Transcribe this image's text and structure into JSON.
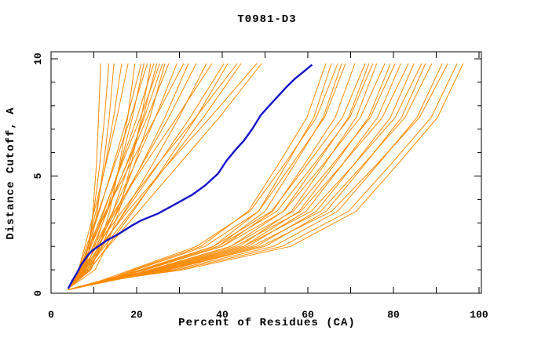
{
  "chart_data": {
    "type": "line",
    "title": "T0981-D3",
    "xlabel": "Percent of Residues (CA)",
    "ylabel": "Distance Cutoff, A",
    "xlim": [
      0,
      100
    ],
    "ylim": [
      0,
      10
    ],
    "x_tick_step_minor": 10,
    "x_major_ticks": [
      0,
      20,
      40,
      60,
      80,
      100
    ],
    "x_tick_labels": [
      "0",
      "20",
      "40",
      "60",
      "80",
      "100"
    ],
    "y_tick_step_minor": 1,
    "y_major_ticks": [
      0,
      5,
      10
    ],
    "y_tick_labels": [
      "0",
      "5",
      "10"
    ],
    "grid": false,
    "legend": "none",
    "colors": {
      "model": "#ff8a00",
      "highlight": "#1414cc",
      "axis": "#000000",
      "background": "#ffffff"
    },
    "highlight_series": {
      "name": "highlighted-model",
      "points": [
        [
          4,
          0.2
        ],
        [
          5,
          0.55
        ],
        [
          6,
          0.85
        ],
        [
          7,
          1.2
        ],
        [
          8.5,
          1.6
        ],
        [
          9.5,
          1.8
        ],
        [
          11,
          2.0
        ],
        [
          13,
          2.25
        ],
        [
          15.5,
          2.5
        ],
        [
          19,
          2.9
        ],
        [
          21,
          3.1
        ],
        [
          25,
          3.4
        ],
        [
          28,
          3.7
        ],
        [
          30,
          3.9
        ],
        [
          33,
          4.2
        ],
        [
          36,
          4.6
        ],
        [
          39,
          5.1
        ],
        [
          41,
          5.65
        ],
        [
          43,
          6.1
        ],
        [
          45,
          6.5
        ],
        [
          47,
          7.0
        ],
        [
          49,
          7.6
        ],
        [
          51,
          8.0
        ],
        [
          53,
          8.4
        ],
        [
          55,
          8.8
        ],
        [
          57,
          9.15
        ],
        [
          59,
          9.45
        ],
        [
          61,
          9.75
        ]
      ]
    },
    "series_groups": [
      {
        "name": "steep-model-fan",
        "cutoffs": [
          0.2,
          1,
          2,
          3.5,
          5.5,
          7.5,
          9.8
        ],
        "models_x": [
          [
            4,
            8.1,
            9.0,
            9.8,
            10.6,
            11.1,
            11.6
          ],
          [
            4,
            7.5,
            8.7,
            10.0,
            11.4,
            12.5,
            13.5
          ],
          [
            4,
            7.8,
            9.2,
            10.8,
            12.3,
            13.6,
            14.7
          ],
          [
            4,
            7.1,
            8.6,
            10.5,
            12.7,
            14.6,
            16.5
          ],
          [
            4,
            6.4,
            7.9,
            10.1,
            12.8,
            15.4,
            18.0
          ],
          [
            4,
            9.3,
            11.4,
            13.7,
            16.0,
            17.9,
            19.6
          ],
          [
            4,
            6.8,
            8.6,
            11.3,
            14.6,
            17.8,
            21.1
          ],
          [
            4,
            8.0,
            10.2,
            13.0,
            16.2,
            19.0,
            21.7
          ],
          [
            4,
            6.5,
            8.3,
            11.1,
            14.9,
            18.6,
            22.5
          ],
          [
            4,
            10.3,
            13.0,
            15.9,
            18.7,
            21.1,
            23.3
          ],
          [
            4,
            7.1,
            9.3,
            12.4,
            16.3,
            20.1,
            24.0
          ],
          [
            4,
            8.5,
            11.2,
            14.5,
            18.2,
            21.5,
            24.7
          ],
          [
            4,
            6.7,
            8.9,
            12.2,
            16.5,
            20.9,
            25.4
          ],
          [
            4,
            7.3,
            9.8,
            13.2,
            17.6,
            21.8,
            26.1
          ],
          [
            4,
            8.8,
            11.8,
            15.4,
            19.5,
            23.1,
            26.6
          ],
          [
            4,
            6.9,
            9.3,
            12.9,
            17.7,
            22.5,
            27.5
          ],
          [
            4,
            7.7,
            10.5,
            14.5,
            19.6,
            24.4,
            29.4
          ],
          [
            4,
            6.5,
            8.9,
            12.8,
            18.5,
            24.4,
            31.0
          ],
          [
            4,
            8.0,
            11.1,
            15.6,
            21.2,
            26.6,
            32.1
          ],
          [
            4,
            7.5,
            10.5,
            15.1,
            21.3,
            27.5,
            33.9
          ],
          [
            4,
            8.4,
            12.1,
            17.2,
            23.7,
            29.9,
            36.3
          ],
          [
            4,
            6.9,
            9.9,
            14.8,
            21.9,
            29.4,
            37.6
          ],
          [
            4,
            8.0,
            11.8,
            17.4,
            25.0,
            32.5,
            40.4
          ],
          [
            4,
            9.0,
            13.2,
            19.2,
            26.7,
            33.9,
            41.3
          ],
          [
            4,
            7.3,
            10.7,
            16.6,
            24.9,
            33.8,
            43.5
          ],
          [
            4,
            8.3,
            12.5,
            18.8,
            27.2,
            35.6,
            44.4
          ],
          [
            4,
            7.5,
            11.4,
            17.9,
            27.3,
            37.2,
            48.1
          ],
          [
            4,
            8.8,
            13.4,
            20.5,
            29.9,
            39.3,
            49.2
          ]
        ]
      },
      {
        "name": "gradual-model-cluster",
        "cutoffs": [
          0.15,
          0.5,
          1,
          2,
          3.5,
          5.5,
          7.5,
          9.8
        ],
        "models_x": [
          [
            4,
            12,
            19.3,
            35,
            46.1,
            53.1,
            59.8,
            64.2
          ],
          [
            4,
            13,
            20.9,
            38,
            48.5,
            55.0,
            61.4,
            65.5
          ],
          [
            4,
            11,
            18.7,
            34,
            46.5,
            54.5,
            62.0,
            67.0
          ],
          [
            4,
            12,
            21.5,
            39,
            50.0,
            56.9,
            63.6,
            67.9
          ],
          [
            4,
            13,
            19.8,
            36,
            48.5,
            56.3,
            63.9,
            68.8
          ],
          [
            4,
            12,
            22.0,
            40,
            51.8,
            59.2,
            66.4,
            71.0
          ],
          [
            4,
            11,
            20.9,
            38,
            51.5,
            59.9,
            68.1,
            73.4
          ],
          [
            4,
            13,
            23.1,
            42,
            54.3,
            62.0,
            69.5,
            74.3
          ],
          [
            4,
            12,
            21.5,
            39,
            52.8,
            61.4,
            69.8,
            75.2
          ],
          [
            4,
            13,
            24.2,
            44,
            56.2,
            63.9,
            71.3,
            76.1
          ],
          [
            4,
            11,
            22.0,
            40,
            54.4,
            63.6,
            72.3,
            78.0
          ],
          [
            4,
            12,
            24.8,
            45,
            58.0,
            66.3,
            74.2,
            79.3
          ],
          [
            4,
            13,
            23.1,
            42,
            56.6,
            65.8,
            74.6,
            80.4
          ],
          [
            4,
            12,
            25.3,
            46,
            59.6,
            68.1,
            76.3,
            81.7
          ],
          [
            4,
            11,
            23.7,
            43,
            58.4,
            68.1,
            77.4,
            83.5
          ],
          [
            4,
            13,
            26.4,
            48,
            62.0,
            70.8,
            79.3,
            84.8
          ],
          [
            4,
            12,
            24.8,
            45,
            60.8,
            70.8,
            80.4,
            86.6
          ],
          [
            4,
            13,
            27.5,
            50,
            64.3,
            73.3,
            81.9,
            87.5
          ],
          [
            4,
            11,
            25.9,
            47,
            63.0,
            73.0,
            82.7,
            89.0
          ],
          [
            4,
            12,
            28.6,
            52,
            67.0,
            76.4,
            85.5,
            91.4
          ],
          [
            4,
            13,
            27.0,
            49,
            65.6,
            76.1,
            86.1,
            92.7
          ],
          [
            4,
            12,
            29.7,
            54,
            69.5,
            79.4,
            88.8,
            94.9
          ],
          [
            4,
            11,
            30.8,
            56,
            71.3,
            81.0,
            90.3,
            96.3
          ]
        ]
      }
    ]
  }
}
